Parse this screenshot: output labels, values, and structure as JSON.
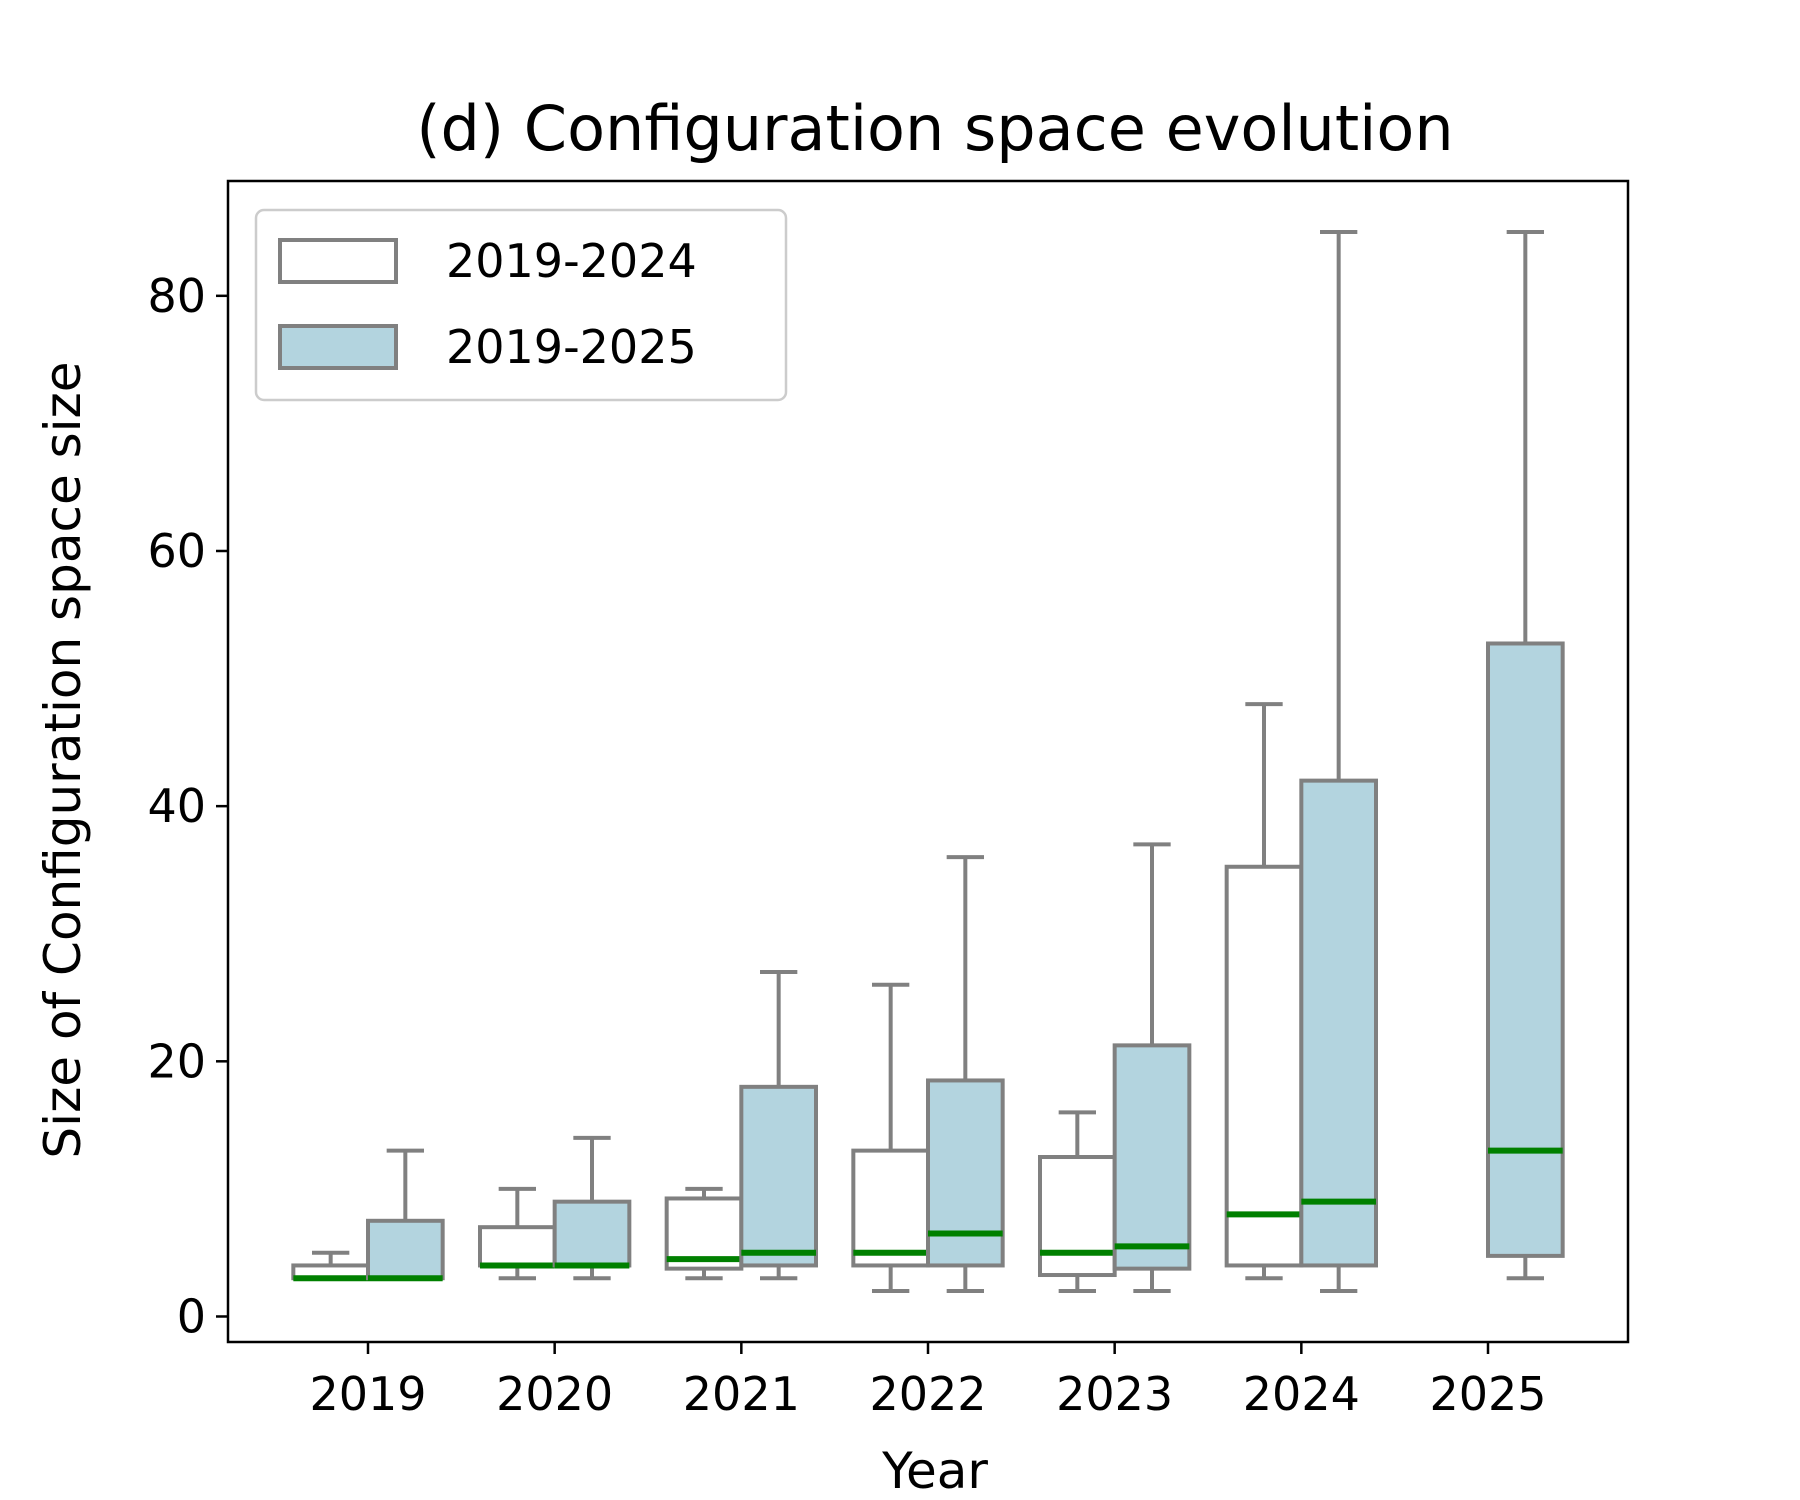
{
  "chart_data": {
    "type": "boxplot",
    "title": "(d) Configuration space evolution",
    "xlabel": "Year",
    "ylabel": "Size of Configuration space size",
    "categories": [
      "2019",
      "2020",
      "2021",
      "2022",
      "2023",
      "2024",
      "2025"
    ],
    "ylim": [
      -2,
      89
    ],
    "yticks": [
      0,
      20,
      40,
      60,
      80
    ],
    "grid": false,
    "legend_position": "upper-left",
    "series": [
      {
        "name": "2019-2024",
        "fill": "#ffffff",
        "boxes": [
          {
            "category": "2019",
            "whisker_low": 3,
            "q1": 3,
            "median": 3,
            "q3": 4,
            "whisker_high": 5
          },
          {
            "category": "2020",
            "whisker_low": 3,
            "q1": 4,
            "median": 4,
            "q3": 7,
            "whisker_high": 10
          },
          {
            "category": "2021",
            "whisker_low": 3,
            "q1": 3.75,
            "median": 4.5,
            "q3": 9.25,
            "whisker_high": 10
          },
          {
            "category": "2022",
            "whisker_low": 2,
            "q1": 4,
            "median": 5,
            "q3": 13,
            "whisker_high": 26
          },
          {
            "category": "2023",
            "whisker_low": 2,
            "q1": 3.25,
            "median": 5,
            "q3": 12.5,
            "whisker_high": 16
          },
          {
            "category": "2024",
            "whisker_low": 3,
            "q1": 4,
            "median": 8,
            "q3": 35.25,
            "whisker_high": 48
          }
        ]
      },
      {
        "name": "2019-2025",
        "fill": "#b3d4df",
        "boxes": [
          {
            "category": "2019",
            "whisker_low": 3,
            "q1": 3,
            "median": 3,
            "q3": 7.5,
            "whisker_high": 13
          },
          {
            "category": "2020",
            "whisker_low": 3,
            "q1": 4,
            "median": 4,
            "q3": 9,
            "whisker_high": 14
          },
          {
            "category": "2021",
            "whisker_low": 3,
            "q1": 4,
            "median": 5,
            "q3": 18,
            "whisker_high": 27
          },
          {
            "category": "2022",
            "whisker_low": 2,
            "q1": 4,
            "median": 6.5,
            "q3": 18.5,
            "whisker_high": 36
          },
          {
            "category": "2023",
            "whisker_low": 2,
            "q1": 3.75,
            "median": 5.5,
            "q3": 21.25,
            "whisker_high": 37
          },
          {
            "category": "2024",
            "whisker_low": 2,
            "q1": 4,
            "median": 9,
            "q3": 42,
            "whisker_high": 85
          },
          {
            "category": "2025",
            "whisker_low": 3,
            "q1": 4.75,
            "median": 13,
            "q3": 52.75,
            "whisker_high": 85
          }
        ]
      }
    ],
    "colors": {
      "box_edge": "#808080",
      "median": "#008000",
      "axis": "#000000",
      "legend_border": "#cccccc"
    }
  }
}
